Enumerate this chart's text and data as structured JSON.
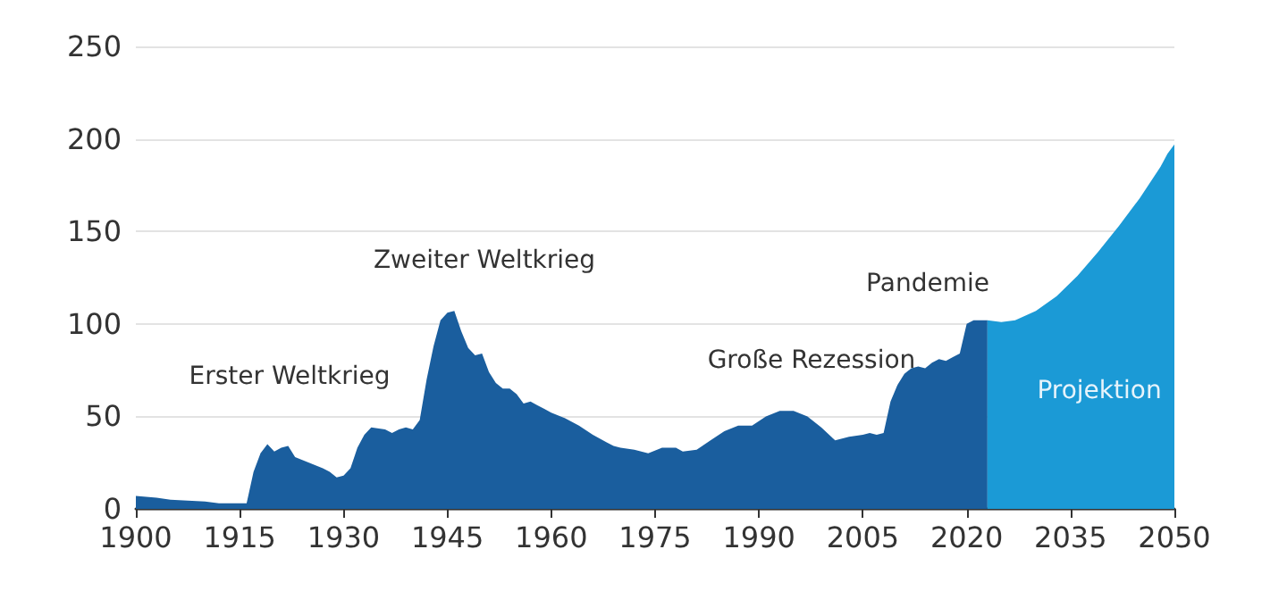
{
  "chart_data": {
    "type": "area",
    "xlim": [
      1900,
      2050
    ],
    "xticks": [
      1900,
      1915,
      1930,
      1945,
      1960,
      1975,
      1990,
      2005,
      2020,
      2035,
      2050
    ],
    "ylim": [
      0,
      250
    ],
    "yticks": [
      0,
      50,
      100,
      150,
      200,
      250
    ],
    "grid": "y",
    "series": [
      {
        "color": "#1a5e9e",
        "x": [
          1900,
          1903,
          1905,
          1910,
          1912,
          1916,
          1917,
          1918,
          1919,
          1920,
          1921,
          1922,
          1923,
          1925,
          1927,
          1928,
          1929,
          1930,
          1931,
          1932,
          1933,
          1934,
          1936,
          1937,
          1938,
          1939,
          1940,
          1941,
          1942,
          1943,
          1944,
          1945,
          1946,
          1947,
          1948,
          1949,
          1950,
          1951,
          1952,
          1953,
          1954,
          1955,
          1956,
          1957,
          1958,
          1959,
          1960,
          1962,
          1964,
          1966,
          1968,
          1969,
          1970,
          1972,
          1974,
          1976,
          1978,
          1979,
          1981,
          1983,
          1985,
          1987,
          1989,
          1991,
          1993,
          1995,
          1997,
          1999,
          2001,
          2003,
          2005,
          2006,
          2007,
          2008,
          2009,
          2010,
          2011,
          2012,
          2013,
          2014,
          2015,
          2016,
          2017,
          2018,
          2019,
          2020,
          2021,
          2022,
          2023
        ],
        "values": [
          7,
          6,
          5,
          4,
          3,
          3,
          20,
          30,
          35,
          31,
          33,
          34,
          28,
          25,
          22,
          20,
          17,
          18,
          22,
          33,
          40,
          44,
          43,
          41,
          43,
          44,
          43,
          48,
          70,
          88,
          102,
          106,
          107,
          96,
          87,
          83,
          84,
          74,
          68,
          65,
          65,
          62,
          57,
          58,
          56,
          54,
          52,
          49,
          45,
          40,
          36,
          34,
          33,
          32,
          30,
          33,
          33,
          31,
          32,
          37,
          42,
          45,
          45,
          50,
          53,
          53,
          50,
          44,
          37,
          39,
          40,
          41,
          40,
          41,
          58,
          67,
          73,
          76,
          77,
          76,
          79,
          81,
          80,
          82,
          84,
          100,
          102,
          102,
          102
        ]
      },
      {
        "color": "#1b9ad6",
        "x": [
          2023,
          2025,
          2027,
          2030,
          2033,
          2036,
          2039,
          2042,
          2045,
          2048,
          2049,
          2050
        ],
        "values": [
          102,
          101,
          102,
          107,
          115,
          126,
          139,
          153,
          168,
          185,
          192,
          197
        ]
      }
    ],
    "annotations": [
      "Erster Weltkrieg",
      "Zweiter Weltkrieg",
      "Große Rezession",
      "Pandemie",
      "Projektion"
    ]
  }
}
